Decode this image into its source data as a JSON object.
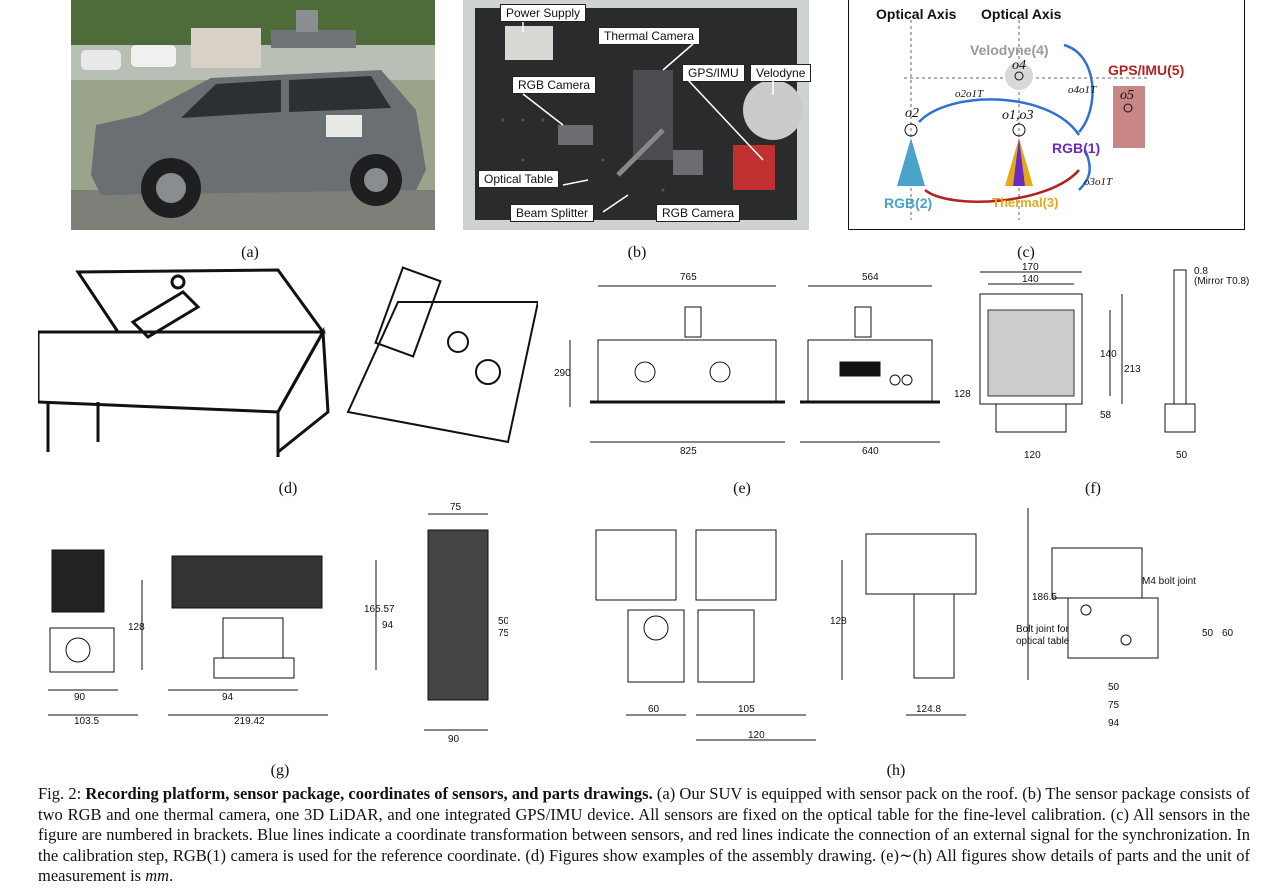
{
  "panel_a": {
    "label": "(a)"
  },
  "panel_b": {
    "label": "(b)",
    "tags": {
      "power_supply": "Power Supply",
      "thermal_camera": "Thermal Camera",
      "rgb_camera_top": "RGB Camera",
      "gps_imu": "GPS/IMU",
      "velodyne": "Velodyne",
      "optical_table": "Optical Table",
      "beam_splitter": "Beam Splitter",
      "rgb_camera_bottom": "RGB Camera"
    }
  },
  "panel_c": {
    "label": "(c)",
    "optical_axis_1": "Optical Axis",
    "optical_axis_2": "Optical Axis",
    "velodyne": "Velodyne(4)",
    "gps_imu": "GPS/IMU(5)",
    "rgb1": "RGB(1)",
    "rgb2": "RGB(2)",
    "thermal3": "Thermal(3)",
    "o2": "o2",
    "o4": "o4",
    "o5": "o5",
    "o1o3": "o1,o3",
    "t21": "o2o1T",
    "t41": "o4o1T",
    "t31": "o3o1T",
    "colors": {
      "blue": "#2f6fd6",
      "red": "#b22222",
      "purple": "#6a2cc0",
      "teal": "#4aa3c8",
      "gold": "#e6a817"
    }
  },
  "panel_d": {
    "label": "(d)"
  },
  "panel_e": {
    "label": "(e)",
    "dims": [
      "765",
      "564",
      "290",
      "825",
      "640"
    ]
  },
  "panel_f": {
    "label": "(f)",
    "dims": [
      "170",
      "140",
      "140",
      "213",
      "128",
      "58",
      "120",
      "0.8",
      "(Mirror T0.8)",
      "50"
    ]
  },
  "panel_g": {
    "label": "(g)",
    "dims": [
      "128",
      "90",
      "103.5",
      "94",
      "219.42",
      "75",
      "165.57",
      "94",
      "50",
      "75",
      "90"
    ]
  },
  "panel_h": {
    "label": "(h)",
    "dims": [
      "60",
      "105",
      "120",
      "128",
      "186.5",
      "124.8",
      "M4 bolt joint",
      "Bolt joint for",
      "optical table",
      "50",
      "75",
      "94",
      "50",
      "60"
    ]
  },
  "caption": {
    "fig": "Fig. 2: ",
    "title": "Recording platform, sensor package, coordinates of sensors, and parts drawings.",
    "body": " (a) Our SUV is equipped with sensor pack on the roof. (b) The sensor package consists of two RGB and one thermal camera, one 3D LiDAR, and one integrated GPS/IMU device. All sensors are fixed on the optical table for the fine-level calibration. (c) All sensors in the figure are numbered in brackets. Blue lines indicate a coordinate transformation between sensors, and red lines indicate the connection of an external signal for the synchronization. In the calibration step, RGB(1) camera is used for the reference coordinate. (d) Figures show examples of the assembly drawing. (e)∼(h) All figures show details of parts and the unit of measurement is ",
    "unit": "mm",
    "end": "."
  }
}
